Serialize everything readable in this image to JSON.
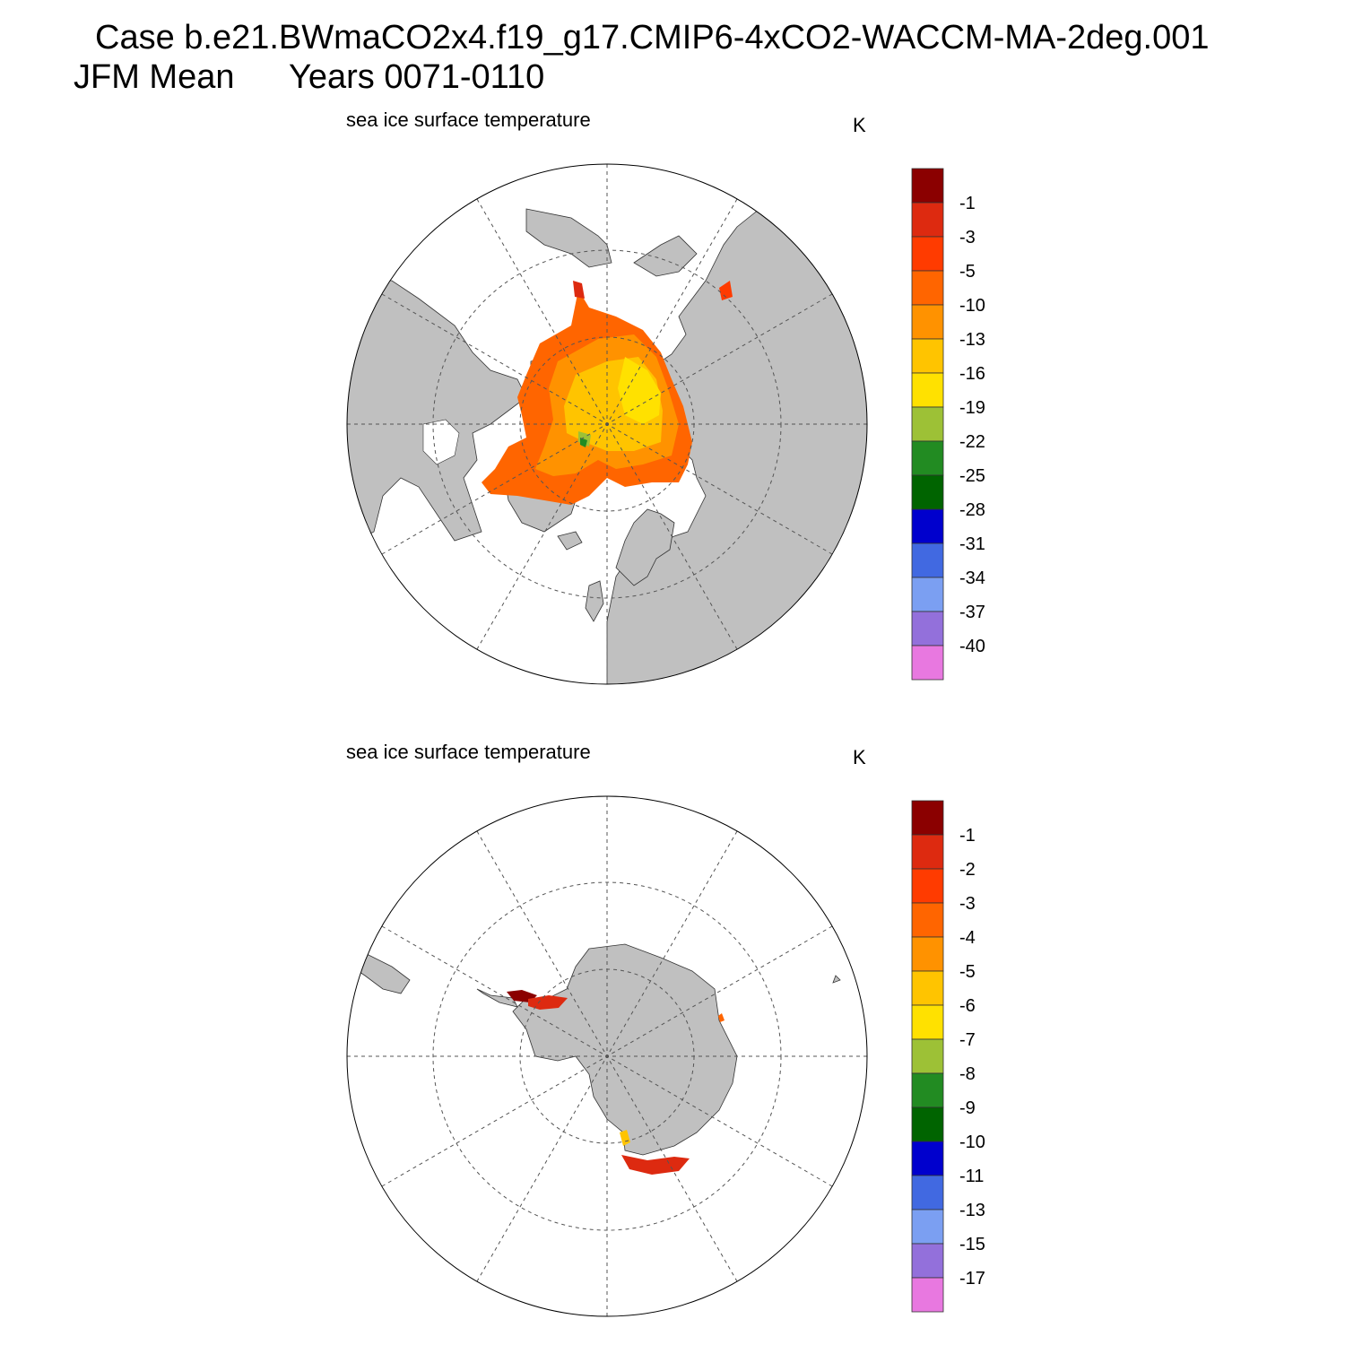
{
  "header": {
    "case_line": "Case b.e21.BWmaCO2x4.f19_g17.CMIP6-4xCO2-WACCM-MA-2deg.001",
    "season_label": "JFM Mean",
    "years_label": "Years 0071-0110"
  },
  "colors": {
    "land": "#c0c0c0",
    "ocean": "#ffffff",
    "swatches": [
      "#8b0000",
      "#dd2a10",
      "#ff3b00",
      "#ff6500",
      "#ff9200",
      "#ffc400",
      "#ffe100",
      "#9dc136",
      "#228b22",
      "#006400",
      "#0000cd",
      "#4169e1",
      "#7b9ff2",
      "#9370db",
      "#e878e0"
    ]
  },
  "panels": [
    {
      "id": "north",
      "title": "sea ice surface temperature",
      "units": "K",
      "projection": "north-polar-stereographic",
      "colorbar_labels": [
        "-1",
        "-3",
        "-5",
        "-10",
        "-13",
        "-16",
        "-19",
        "-22",
        "-25",
        "-28",
        "-31",
        "-34",
        "-37",
        "-40"
      ]
    },
    {
      "id": "south",
      "title": "sea ice surface temperature",
      "units": "K",
      "projection": "south-polar-stereographic",
      "colorbar_labels": [
        "-1",
        "-2",
        "-3",
        "-4",
        "-5",
        "-6",
        "-7",
        "-8",
        "-9",
        "-10",
        "-11",
        "-13",
        "-15",
        "-17"
      ]
    }
  ]
}
